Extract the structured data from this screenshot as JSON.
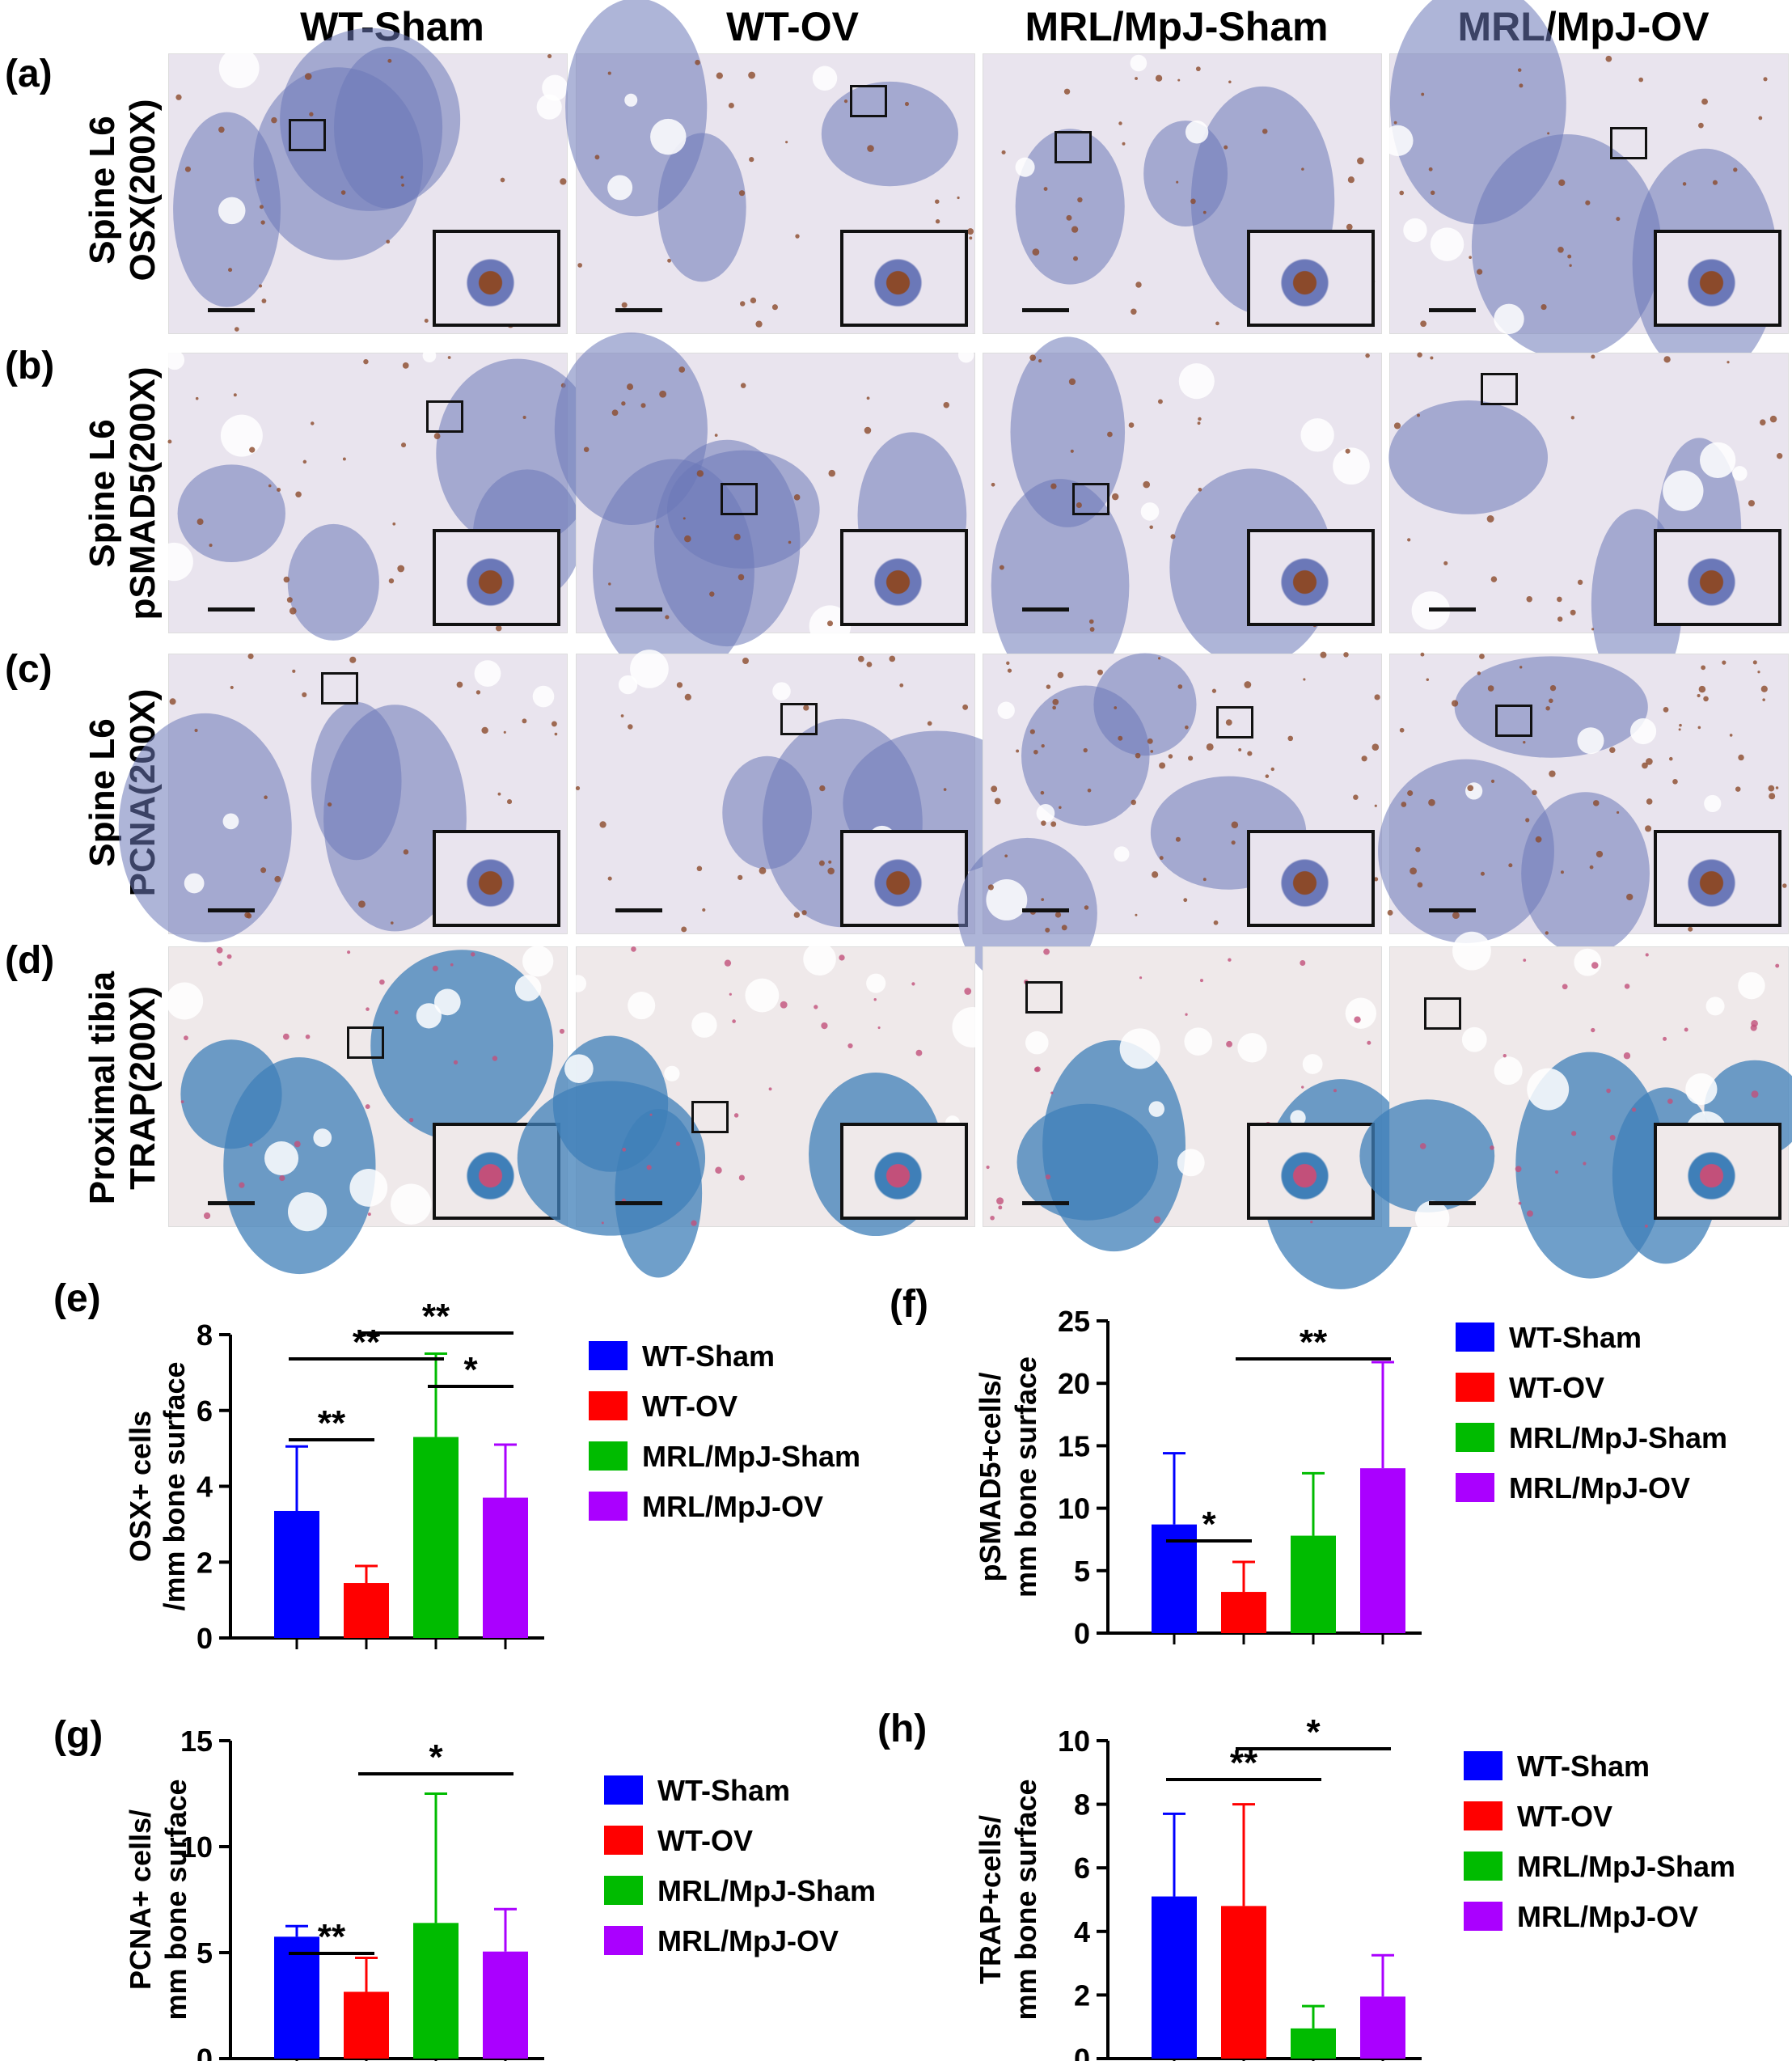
{
  "column_titles": [
    "WT-Sham",
    "WT-OV",
    "MRL/MpJ-Sham",
    "MRL/MpJ-OV"
  ],
  "rows": [
    {
      "letter": "(a)",
      "label_line1": "Spine L6",
      "label_line2": "OSX(200X)",
      "stain": "OSX"
    },
    {
      "letter": "(b)",
      "label_line1": "Spine L6",
      "label_line2": "pSMAD5(200X)",
      "stain": "pSMAD5"
    },
    {
      "letter": "(c)",
      "label_line1": "Spine L6",
      "label_line2": "PCNA(200X)",
      "stain": "PCNA"
    },
    {
      "letter": "(d)",
      "label_line1": "Proximal tibia",
      "label_line2": "TRAP(200X)",
      "stain": "TRAP"
    }
  ],
  "colors": {
    "WT-Sham": "#0000ff",
    "WT-OV": "#ff0000",
    "MRL/MpJ-Sham": "#00bb00",
    "MRL/MpJ-OV": "#aa00ff",
    "bone_matrix_he": "#e9e4ee",
    "marrow_hematoxylin": "#6b78b8",
    "dab_brown": "#8b4a2b",
    "trap_pink": "#c2507a",
    "trap_bone": "#efe9ea",
    "trap_marrow": "#3f7fb8"
  },
  "chart_data": [
    {
      "letter": "(e)",
      "type": "bar",
      "categories": [
        "WT-Sham",
        "WT-OV",
        "MRL/MpJ-Sham",
        "MRL/MpJ-OV"
      ],
      "values": [
        3.35,
        1.45,
        5.3,
        3.7
      ],
      "errors": [
        1.7,
        0.45,
        2.2,
        1.4
      ],
      "ylabel_line1": "OSX+ cells",
      "ylabel_line2": "/mm bone surface",
      "ylim": [
        0,
        8
      ],
      "yticks": [
        "0",
        "2",
        "4",
        "6",
        "8"
      ],
      "legend": [
        "WT-Sham",
        "WT-OV",
        "MRL/MpJ-Sham",
        "MRL/MpJ-OV"
      ],
      "significance": [
        {
          "from": 0,
          "to": 1,
          "label": "**"
        },
        {
          "from": 0,
          "to": 2,
          "label": "**"
        },
        {
          "from": 1,
          "to": 3,
          "label": "**"
        },
        {
          "from": 2,
          "to": 3,
          "label": "*"
        }
      ]
    },
    {
      "letter": "(f)",
      "type": "bar",
      "categories": [
        "WT-Sham",
        "WT-OV",
        "MRL/MpJ-Sham",
        "MRL/MpJ-OV"
      ],
      "values": [
        8.7,
        3.3,
        7.8,
        13.2
      ],
      "errors": [
        5.7,
        2.4,
        5.0,
        8.5
      ],
      "ylabel_line1": "pSMAD5+cells/",
      "ylabel_line2": "mm bone surface",
      "ylim": [
        0,
        25
      ],
      "yticks": [
        "0",
        "5",
        "10",
        "15",
        "20",
        "25"
      ],
      "legend": [
        "WT-Sham",
        "WT-OV",
        "MRL/MpJ-Sham",
        "MRL/MpJ-OV"
      ],
      "significance": [
        {
          "from": 0,
          "to": 1,
          "label": "*"
        },
        {
          "from": 1,
          "to": 3,
          "label": "**"
        }
      ]
    },
    {
      "letter": "(g)",
      "type": "bar",
      "categories": [
        "WT-Sham",
        "WT-OV",
        "MRL/MpJ-Sham",
        "MRL/MpJ-OV"
      ],
      "values": [
        5.75,
        3.15,
        6.4,
        5.05
      ],
      "errors": [
        0.5,
        1.6,
        6.1,
        2.0
      ],
      "ylabel_line1": "PCNA+ cells/",
      "ylabel_line2": "mm bone surface",
      "ylim": [
        0,
        15
      ],
      "yticks": [
        "0",
        "5",
        "10",
        "15"
      ],
      "legend": [
        "WT-Sham",
        "WT-OV",
        "MRL/MpJ-Sham",
        "MRL/MpJ-OV"
      ],
      "significance": [
        {
          "from": 0,
          "to": 1,
          "label": "**"
        },
        {
          "from": 1,
          "to": 3,
          "label": "*"
        }
      ]
    },
    {
      "letter": "(h)",
      "type": "bar",
      "categories": [
        "WT-Sham",
        "WT-OV",
        "MRL/MpJ-Sham",
        "MRL/MpJ-OV"
      ],
      "values": [
        5.1,
        4.8,
        0.95,
        1.95
      ],
      "errors": [
        2.6,
        3.2,
        0.7,
        1.3
      ],
      "ylabel_line1": "TRAP+cells/",
      "ylabel_line2": "mm bone surface",
      "ylim": [
        0,
        10
      ],
      "yticks": [
        "0",
        "2",
        "4",
        "6",
        "8",
        "10"
      ],
      "legend": [
        "WT-Sham",
        "WT-OV",
        "MRL/MpJ-Sham",
        "MRL/MpJ-OV"
      ],
      "significance": [
        {
          "from": 0,
          "to": 2,
          "label": "**"
        },
        {
          "from": 1,
          "to": 3,
          "label": "*"
        }
      ]
    }
  ]
}
